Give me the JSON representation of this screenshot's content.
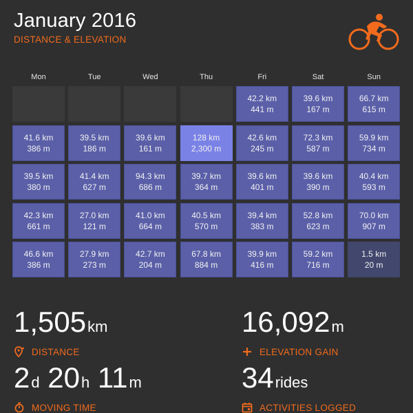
{
  "header": {
    "title": "January 2016",
    "subtitle": "DISTANCE & ELEVATION"
  },
  "calendar": {
    "weekdays": [
      "Mon",
      "Tue",
      "Wed",
      "Thu",
      "Fri",
      "Sat",
      "Sun"
    ],
    "weeks": [
      [
        {
          "dist": "",
          "elev": "",
          "empty": true
        },
        {
          "dist": "",
          "elev": "",
          "empty": true
        },
        {
          "dist": "",
          "elev": "",
          "empty": true
        },
        {
          "dist": "",
          "elev": "",
          "empty": true
        },
        {
          "dist": "42.2 km",
          "elev": "441 m"
        },
        {
          "dist": "39.6 km",
          "elev": "167 m"
        },
        {
          "dist": "66.7 km",
          "elev": "615 m"
        }
      ],
      [
        {
          "dist": "41.6 km",
          "elev": "386 m"
        },
        {
          "dist": "39.5 km",
          "elev": "186 m"
        },
        {
          "dist": "39.6 km",
          "elev": "161 m"
        },
        {
          "dist": "128 km",
          "elev": "2,300 m",
          "highlight": "max"
        },
        {
          "dist": "42.6 km",
          "elev": "245 m"
        },
        {
          "dist": "72.3 km",
          "elev": "587 m"
        },
        {
          "dist": "59.9 km",
          "elev": "734 m"
        }
      ],
      [
        {
          "dist": "39.5 km",
          "elev": "380 m"
        },
        {
          "dist": "41.4 km",
          "elev": "627 m"
        },
        {
          "dist": "94.3 km",
          "elev": "686 m"
        },
        {
          "dist": "39.7 km",
          "elev": "364 m"
        },
        {
          "dist": "39.6 km",
          "elev": "401 m"
        },
        {
          "dist": "39.6 km",
          "elev": "390 m"
        },
        {
          "dist": "40.4 km",
          "elev": "593 m"
        }
      ],
      [
        {
          "dist": "42.3 km",
          "elev": "661 m"
        },
        {
          "dist": "27.0 km",
          "elev": "121 m"
        },
        {
          "dist": "41.0 km",
          "elev": "664 m"
        },
        {
          "dist": "40.5 km",
          "elev": "570 m"
        },
        {
          "dist": "39.4 km",
          "elev": "383 m"
        },
        {
          "dist": "52.8 km",
          "elev": "623 m"
        },
        {
          "dist": "70.0 km",
          "elev": "907 m"
        }
      ],
      [
        {
          "dist": "46.6 km",
          "elev": "386 m"
        },
        {
          "dist": "27.9 km",
          "elev": "273 m"
        },
        {
          "dist": "42.7 km",
          "elev": "204 m"
        },
        {
          "dist": "67.8 km",
          "elev": "884 m"
        },
        {
          "dist": "39.9 km",
          "elev": "416 m"
        },
        {
          "dist": "59.2 km",
          "elev": "716 m"
        },
        {
          "dist": "1.5 km",
          "elev": "20 m",
          "highlight": "low"
        }
      ]
    ]
  },
  "stats": {
    "distance": {
      "value": "1,505",
      "unit": "km",
      "label": "DISTANCE",
      "icon": "map-pin-icon"
    },
    "elevation": {
      "value": "16,092",
      "unit": "m",
      "label": "ELEVATION GAIN",
      "icon": "plus-icon"
    },
    "moving_time": {
      "d": "2",
      "d_unit": "d",
      "h": "20",
      "h_unit": "h",
      "m": "11",
      "m_unit": "m",
      "label": "MOVING TIME",
      "icon": "stopwatch-icon"
    },
    "activities": {
      "value": "34",
      "unit": "rides",
      "label": "ACTIVITIES LOGGED",
      "icon": "calendar-icon"
    }
  },
  "colors": {
    "background": "#2f2f2f",
    "accent": "#f26b1d",
    "cell": "#5a5fa8",
    "cell_max": "#7a82e6",
    "cell_low": "#41476d",
    "cell_empty": "#3a3a3a"
  }
}
